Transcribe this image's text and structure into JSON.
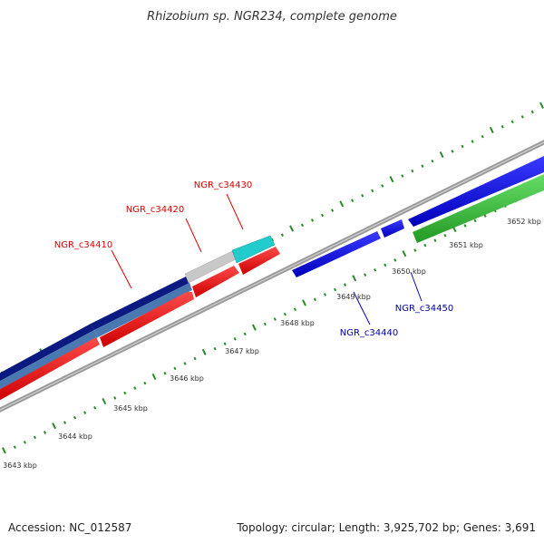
{
  "title": "Rhizobium sp. NGR234, complete genome",
  "footer": {
    "accession": "Accession: NC_012587",
    "summary": "Topology: circular; Length: 3,925,702 bp; Genes: 3,691"
  },
  "ruler": {
    "ticks": [
      {
        "label": "3643 kbp"
      },
      {
        "label": "3644 kbp"
      },
      {
        "label": "3645 kbp"
      },
      {
        "label": "3646 kbp"
      },
      {
        "label": "3647 kbp"
      },
      {
        "label": "3648 kbp"
      },
      {
        "label": "3649 kbp"
      },
      {
        "label": "3650 kbp"
      },
      {
        "label": "3651 kbp"
      },
      {
        "label": "3652 kbp"
      }
    ]
  },
  "genes": [
    {
      "name": "NGR_c34410",
      "color": "#dd0000"
    },
    {
      "name": "NGR_c34420",
      "color": "#dd0000"
    },
    {
      "name": "NGR_c34430",
      "color": "#dd0000"
    },
    {
      "name": "NGR_c34440",
      "color": "#0000aa"
    },
    {
      "name": "NGR_c34450",
      "color": "#0000aa"
    }
  ],
  "colors": {
    "backbone": "#888888",
    "cds_forward": "#ff0000",
    "cds_reverse": "#0000ee",
    "navy_track": "#0a1a80",
    "steel_track": "#4a78b0",
    "grey_gene": "#c8c8c8",
    "cyan_gene": "#22cccc",
    "green_gene": "#33bb33",
    "tick_green": "#2a8a2a"
  }
}
